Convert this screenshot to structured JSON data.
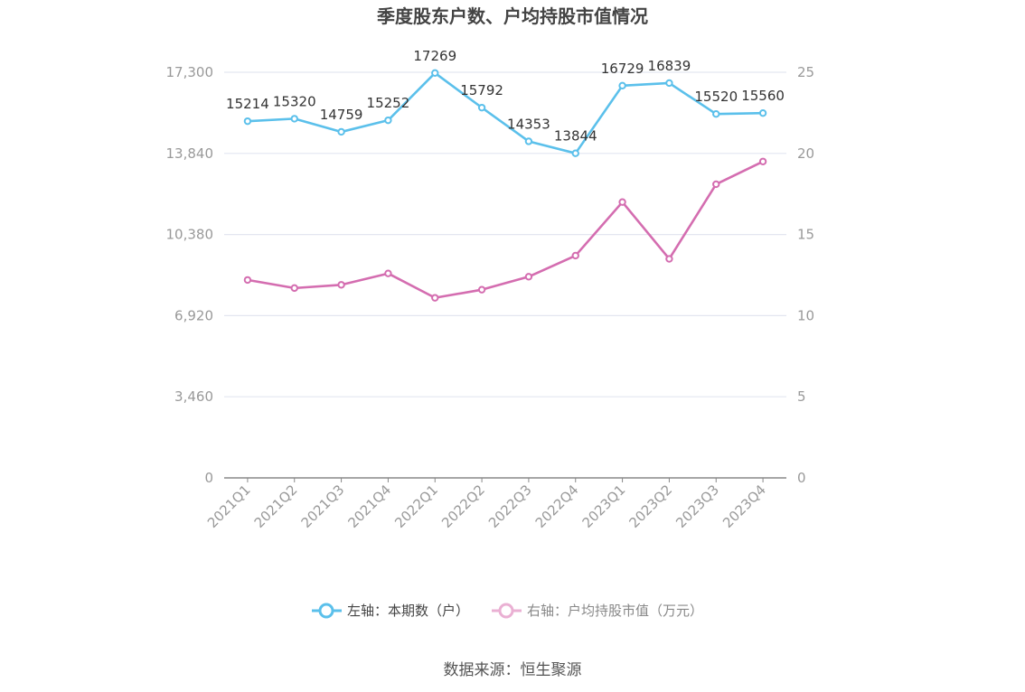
{
  "chart_data": {
    "type": "line",
    "title": "季度股东户数、户均持股市值情况",
    "categories": [
      "2021Q1",
      "2021Q2",
      "2021Q3",
      "2021Q4",
      "2022Q1",
      "2022Q2",
      "2022Q3",
      "2022Q4",
      "2023Q1",
      "2023Q2",
      "2023Q3",
      "2023Q4"
    ],
    "y_left": {
      "ticks": [
        "0",
        "3,460",
        "6,920",
        "10,380",
        "13,840",
        "17,300"
      ],
      "ylim": [
        0,
        17300
      ]
    },
    "y_right": {
      "ticks": [
        "0",
        "5",
        "10",
        "15",
        "20",
        "25"
      ],
      "ylim": [
        0,
        25
      ]
    },
    "series": [
      {
        "name": "左轴：本期数（户）",
        "axis": "left",
        "color": "#5bc0eb",
        "values": [
          15214,
          15320,
          14759,
          15252,
          17269,
          15792,
          14353,
          13844,
          16729,
          16839,
          15520,
          15560
        ],
        "labels": [
          "15214",
          "15320",
          "14759",
          "15252",
          "17269",
          "15792",
          "14353",
          "13844",
          "16729",
          "16839",
          "15520",
          "15560"
        ]
      },
      {
        "name": "右轴：户均持股市值（万元）",
        "axis": "right",
        "color": "#d46db0",
        "values": [
          12.2,
          11.7,
          11.9,
          12.6,
          11.1,
          11.6,
          12.4,
          13.7,
          17.0,
          13.5,
          18.1,
          19.5
        ]
      }
    ],
    "grid": true,
    "legend_position": "bottom"
  },
  "source": "数据来源：恒生聚源"
}
